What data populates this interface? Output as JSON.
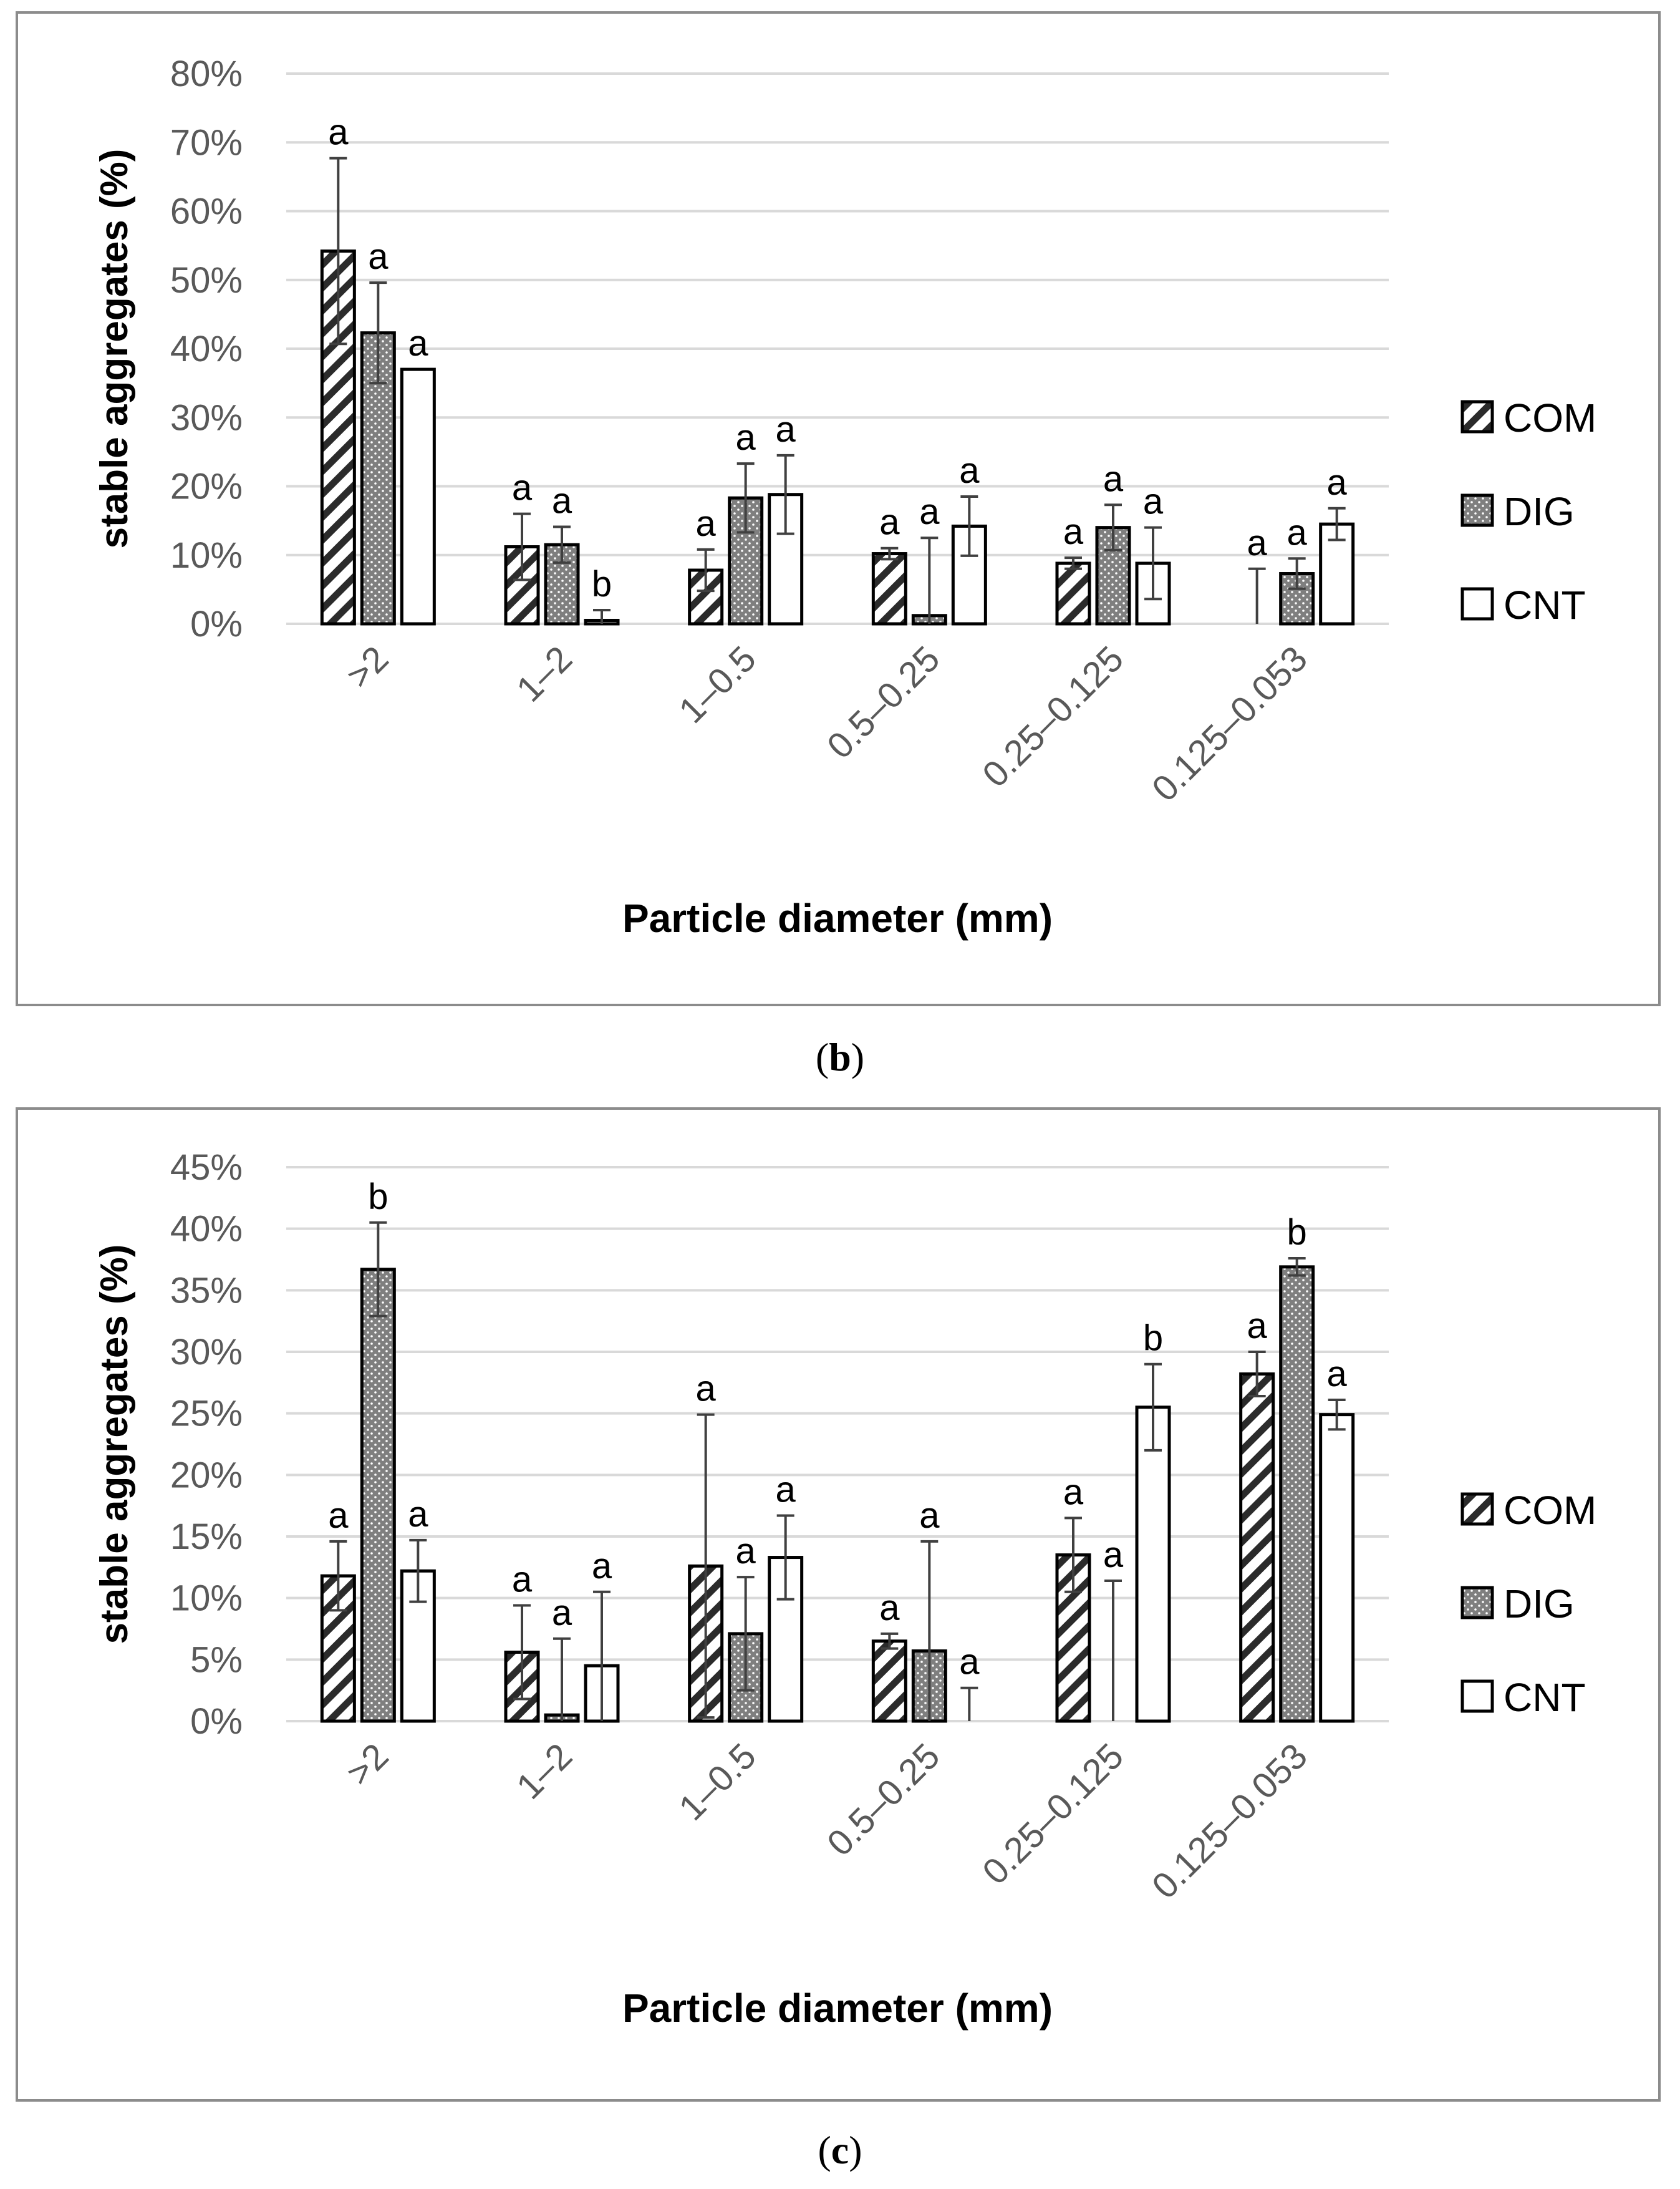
{
  "colors": {
    "grid": "#d9d9d9",
    "tick": "#595959",
    "bar_stroke": "#000000",
    "dig_fill": "#7f7f7f",
    "err": "#404040",
    "frame": "#8c8c8c"
  },
  "chart_data": [
    {
      "id": "b",
      "type": "bar",
      "caption_open": "(",
      "caption_letter": "b",
      "caption_close": ")",
      "xlabel": "Particle diameter (mm)",
      "ylabel": "stable aggregates (%)",
      "ylim": [
        0,
        80
      ],
      "yticks": [
        0,
        10,
        20,
        30,
        40,
        50,
        60,
        70,
        80
      ],
      "ytick_labels": [
        "0%",
        "10%",
        "20%",
        "30%",
        "40%",
        "50%",
        "60%",
        "70%",
        "80%"
      ],
      "categories": [
        ">2",
        "1–2",
        "1–0.5",
        "0.5–0.25",
        "0.25–0.125",
        "0.125–0.053"
      ],
      "legend_position": "right",
      "series": [
        {
          "name": "COM",
          "pattern": "hatch",
          "values": [
            54.2,
            11.2,
            7.8,
            10.2,
            8.8,
            0.0
          ],
          "errors": [
            13.5,
            4.8,
            3.0,
            0.8,
            0.8,
            8.0
          ],
          "letters": [
            "a",
            "a",
            "a",
            "a",
            "a",
            "a"
          ]
        },
        {
          "name": "DIG",
          "pattern": "dots",
          "values": [
            42.3,
            11.5,
            18.3,
            1.2,
            14.0,
            7.3
          ],
          "errors": [
            7.3,
            2.6,
            5.0,
            11.3,
            3.3,
            2.2
          ],
          "letters": [
            "a",
            "a",
            "a",
            "a",
            "a",
            "a"
          ]
        },
        {
          "name": "CNT",
          "pattern": "plain",
          "values": [
            37.0,
            0.5,
            18.8,
            14.2,
            8.8,
            14.5
          ],
          "errors": [
            0.0,
            1.5,
            5.7,
            4.3,
            5.2,
            2.3
          ],
          "letters": [
            "a",
            "b",
            "a",
            "a",
            "a",
            "a"
          ]
        }
      ]
    },
    {
      "id": "c",
      "type": "bar",
      "caption_open": "(",
      "caption_letter": "c",
      "caption_close": ")",
      "xlabel": "Particle diameter (mm)",
      "ylabel": "stable aggregates (%)",
      "ylim": [
        0,
        45
      ],
      "yticks": [
        0,
        5,
        10,
        15,
        20,
        25,
        30,
        35,
        40,
        45
      ],
      "ytick_labels": [
        "0%",
        "5%",
        "10%",
        "15%",
        "20%",
        "25%",
        "30%",
        "35%",
        "40%",
        "45%"
      ],
      "categories": [
        ">2",
        "1–2",
        "1–0.5",
        "0.5–0.25",
        "0.25–0.125",
        "0.125–0.053"
      ],
      "legend_position": "right",
      "series": [
        {
          "name": "COM",
          "pattern": "hatch",
          "values": [
            11.8,
            5.6,
            12.6,
            6.5,
            13.5,
            28.2
          ],
          "errors": [
            2.8,
            3.8,
            12.3,
            0.6,
            3.0,
            1.8
          ],
          "letters": [
            "a",
            "a",
            "a",
            "a",
            "a",
            "a"
          ]
        },
        {
          "name": "DIG",
          "pattern": "dots",
          "values": [
            36.7,
            0.5,
            7.1,
            5.7,
            0.0,
            36.9
          ],
          "errors": [
            3.8,
            6.2,
            4.6,
            8.9,
            11.4,
            0.7
          ],
          "letters": [
            "b",
            "a",
            "a",
            "a",
            "a",
            "b"
          ]
        },
        {
          "name": "CNT",
          "pattern": "plain",
          "values": [
            12.2,
            4.5,
            13.3,
            0.0,
            25.5,
            24.9
          ],
          "errors": [
            2.5,
            6.0,
            3.4,
            2.7,
            3.5,
            1.2
          ],
          "letters": [
            "a",
            "a",
            "a",
            "a",
            "b",
            "a"
          ]
        }
      ]
    }
  ]
}
